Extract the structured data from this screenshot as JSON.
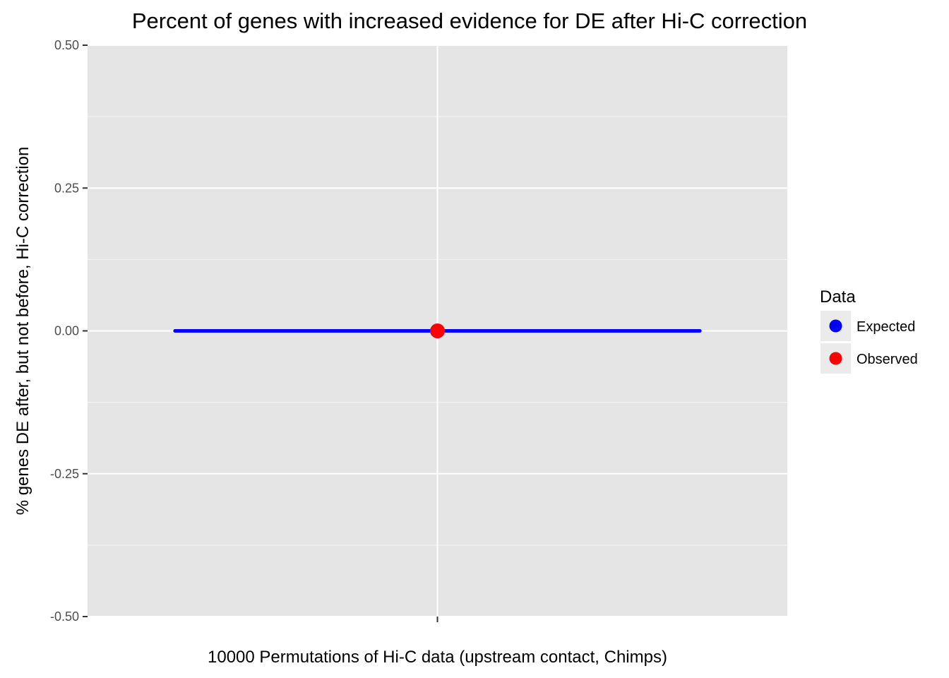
{
  "chart_data": {
    "type": "scatter",
    "title": "Percent of genes with increased evidence for DE after Hi-C correction",
    "xlabel": "10000 Permutations of Hi-C data (upstream contact, Chimps)",
    "ylabel": "% genes DE after, but not before, Hi-C correction",
    "ylim": [
      -0.5,
      0.5
    ],
    "y_ticks": [
      "0.50",
      "0.25",
      "0.00",
      "-0.25",
      "-0.50"
    ],
    "y_tick_values": [
      0.5,
      0.25,
      0.0,
      -0.25,
      -0.5
    ],
    "x_ticks": [
      ""
    ],
    "grid": true,
    "legend": {
      "title": "Data",
      "position": "right",
      "entries": [
        {
          "label": "Expected",
          "color": "#0000ff"
        },
        {
          "label": "Observed",
          "color": "#ff0000"
        }
      ]
    },
    "series": [
      {
        "name": "Expected",
        "color": "#0000ff",
        "type": "interval",
        "x": 0,
        "ymin": 0.0,
        "ymax": 0.0,
        "xrange": [
          -0.75,
          0.75
        ]
      },
      {
        "name": "Observed",
        "color": "#ff0000",
        "type": "point",
        "x": 0,
        "y": 0.0
      }
    ]
  }
}
